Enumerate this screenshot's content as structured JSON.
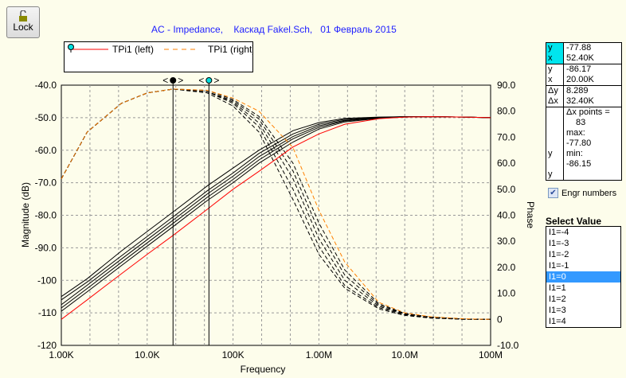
{
  "toolbar": {
    "lock_label": "Lock"
  },
  "title": "AC - Impedance,    Каскад Fakel.Sch,   01 Февраль 2015",
  "legend": [
    {
      "label": "TPi1 (left)",
      "color": "#ff0000"
    },
    {
      "label": "TPi1 (right)",
      "color": "#ff8000"
    }
  ],
  "cursor_panel": {
    "c1": {
      "y_label": "y",
      "y": "-77.88",
      "x_label": "x",
      "x": "52.40K"
    },
    "c2": {
      "y_label": "y",
      "y": "-86.17",
      "x_label": "x",
      "x": "20.00K"
    },
    "delta": {
      "dy_label": "Δy",
      "dy": "8.289",
      "dx_label": "Δx",
      "dx": "32.40K"
    },
    "stats": {
      "points_label": "Δx points =",
      "points": "83",
      "max_label": "max:",
      "max": "-77.80",
      "min_label": "min:",
      "min": "-86.15",
      "y_label": "y"
    }
  },
  "engr_numbers": {
    "label": "Engr numbers",
    "checked": true
  },
  "select_value": {
    "title": "Select Value",
    "options": [
      "I1=-4",
      "I1=-3",
      "I1=-2",
      "I1=-1",
      "I1=0",
      "I1=1",
      "I1=2",
      "I1=3",
      "I1=4"
    ],
    "selected": "I1=0"
  },
  "chart_data": {
    "type": "line",
    "xlabel": "Frequency",
    "ylabel": "Magnitude (dB)",
    "y2label": "Phase",
    "xscale": "log",
    "xlim": [
      1000,
      100000000
    ],
    "ylim": [
      -120,
      -40
    ],
    "y2lim": [
      -10,
      90
    ],
    "xticks": [
      "1.00K",
      "10.0K",
      "100K",
      "1.00M",
      "10.0M",
      "100M"
    ],
    "yticks": [
      "-40.0",
      "-50.0",
      "-60.0",
      "-70.0",
      "-80.0",
      "-90.0",
      "-100",
      "-110",
      "-120"
    ],
    "y2ticks": [
      "90.0",
      "80.0",
      "70.0",
      "60.0",
      "50.0",
      "40.0",
      "30.0",
      "20.0",
      "10.0",
      "0",
      "-10.0"
    ],
    "grid": true,
    "cursors": [
      20000,
      52400
    ],
    "x": [
      1000,
      2000,
      5000,
      10000,
      20000,
      50000,
      100000,
      200000,
      500000,
      1000000,
      2000000,
      5000000,
      10000000,
      20000000,
      50000000,
      100000000
    ],
    "magnitude_selected": {
      "name": "TPi1 (left)",
      "color": "#ff0000",
      "values": [
        -112,
        -106,
        -98,
        -92,
        -86.2,
        -78.2,
        -72,
        -66.5,
        -59,
        -55,
        -52,
        -50.3,
        -49.8,
        -49.7,
        -49.8,
        -50
      ]
    },
    "phase_selected": {
      "name": "TPi1 (right)",
      "color": "#ff8000",
      "values": [
        54,
        72,
        83,
        87,
        88.5,
        88,
        85,
        80,
        66,
        42,
        22,
        6.5,
        2.5,
        1,
        0.2,
        0
      ]
    },
    "magnitude_others": [
      [
        -105,
        -99.5,
        -91,
        -85,
        -79,
        -71,
        -65.5,
        -60,
        -54,
        -51.5,
        -50.2,
        -49.8,
        -49.7,
        -49.7,
        -49.8,
        -50
      ],
      [
        -106,
        -100.5,
        -92.5,
        -86.5,
        -80.5,
        -72.5,
        -67,
        -61,
        -55,
        -52,
        -50.5,
        -49.9,
        -49.7,
        -49.7,
        -49.8,
        -50
      ],
      [
        -107.5,
        -101.5,
        -93.5,
        -87.5,
        -81.5,
        -73.5,
        -68,
        -62,
        -55.8,
        -52.5,
        -50.8,
        -50,
        -49.7,
        -49.7,
        -49.8,
        -50
      ],
      [
        -108.5,
        -102.5,
        -94.5,
        -88.5,
        -82.5,
        -74.5,
        -69,
        -63,
        -56.5,
        -53,
        -51,
        -50.1,
        -49.8,
        -49.7,
        -49.8,
        -50
      ],
      [
        -109.5,
        -103.5,
        -95.5,
        -89.5,
        -83.5,
        -75.5,
        -70,
        -64,
        -57.5,
        -53.5,
        -51.3,
        -50.2,
        -49.8,
        -49.7,
        -49.8,
        -50
      ]
    ],
    "phase_others": [
      [
        54,
        72,
        83,
        87,
        88.5,
        87,
        82,
        72,
        46,
        25,
        12,
        4,
        1.5,
        0.5,
        0,
        0
      ],
      [
        54,
        72,
        83,
        87,
        88.5,
        87.5,
        83,
        74,
        50,
        28,
        13,
        4.5,
        1.8,
        0.6,
        0,
        0
      ],
      [
        54,
        72,
        83,
        87,
        88.5,
        87.5,
        83.5,
        75.5,
        54,
        31,
        15,
        5,
        2,
        0.7,
        0.1,
        0
      ],
      [
        54,
        72,
        83,
        87,
        88.5,
        87.5,
        84,
        77,
        57,
        34,
        17,
        5.5,
        2.2,
        0.8,
        0.1,
        0
      ],
      [
        54,
        72,
        83,
        87,
        88.5,
        88,
        84.5,
        78,
        60,
        37,
        19,
        6,
        2.3,
        0.9,
        0.1,
        0
      ]
    ]
  }
}
